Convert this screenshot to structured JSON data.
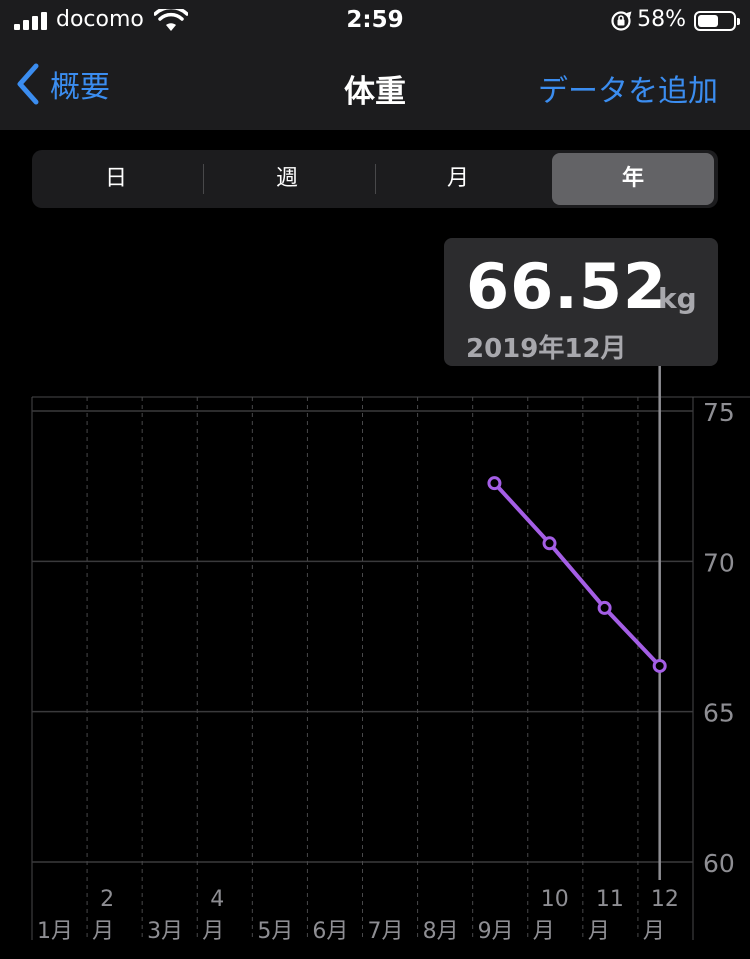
{
  "status_bar": {
    "carrier": "docomo",
    "time": "2:59",
    "battery_percent": "58%",
    "battery_level": 0.58
  },
  "nav": {
    "back_label": "概要",
    "title": "体重",
    "add_label": "データを追加"
  },
  "segments": {
    "day": "日",
    "week": "週",
    "month": "月",
    "year": "年",
    "selected": "year"
  },
  "selection": {
    "value": "66.52",
    "unit": "kg",
    "date": "2019年12月"
  },
  "colors": {
    "accent": "#3b8df0",
    "series": "#a45ee5"
  },
  "chart_data": {
    "type": "line",
    "categories": [
      "1月",
      "2月",
      "3月",
      "4月",
      "5月",
      "6月",
      "7月",
      "8月",
      "9月",
      "10月",
      "11月",
      "12月"
    ],
    "category_labels": [
      {
        "num": "",
        "unit": "1月"
      },
      {
        "num": "2",
        "unit": "月"
      },
      {
        "num": "",
        "unit": "3月"
      },
      {
        "num": "4",
        "unit": "月"
      },
      {
        "num": "",
        "unit": "5月"
      },
      {
        "num": "",
        "unit": "6月"
      },
      {
        "num": "",
        "unit": "7月"
      },
      {
        "num": "",
        "unit": "8月"
      },
      {
        "num": "",
        "unit": "9月"
      },
      {
        "num": "10",
        "unit": "月"
      },
      {
        "num": "11",
        "unit": "月"
      },
      {
        "num": "12",
        "unit": "月"
      }
    ],
    "points": [
      {
        "month": "9月",
        "value": 72.6
      },
      {
        "month": "10月",
        "value": 70.6
      },
      {
        "month": "11月",
        "value": 68.45
      },
      {
        "month": "12月",
        "value": 66.52
      }
    ],
    "yticks": [
      75,
      70,
      65,
      60
    ],
    "ylim": [
      60,
      75.5
    ],
    "selected_month": "12月",
    "grid": true
  }
}
